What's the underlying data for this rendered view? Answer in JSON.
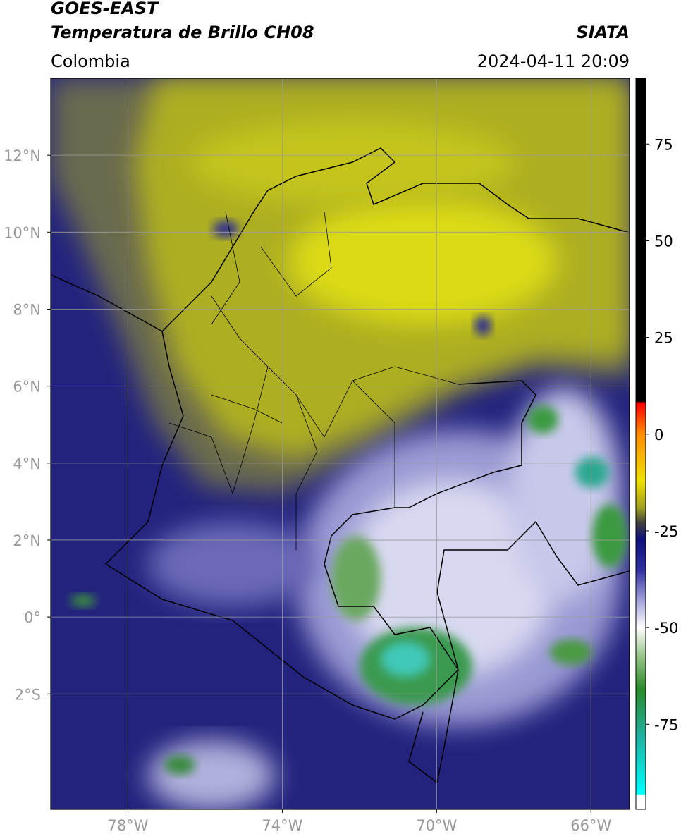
{
  "header": {
    "title_line1": "GOES-EAST",
    "title_line2": "Temperatura de Brillo CH08",
    "region": "Colombia",
    "agency": "SIATA",
    "datetime": "2024-04-11 20:09"
  },
  "map": {
    "lonlim": [
      -80,
      -65
    ],
    "latlim": [
      -5,
      14
    ],
    "grid": true,
    "grid_color": "#9a9a9a",
    "lon_ticks": [
      {
        "value": -78,
        "label": "78°W"
      },
      {
        "value": -74,
        "label": "74°W"
      },
      {
        "value": -70,
        "label": "70°W"
      },
      {
        "value": -66,
        "label": "66°W"
      }
    ],
    "lat_ticks": [
      {
        "value": 12,
        "label": "12°N"
      },
      {
        "value": 10,
        "label": "10°N"
      },
      {
        "value": 8,
        "label": "8°N"
      },
      {
        "value": 6,
        "label": "6°N"
      },
      {
        "value": 4,
        "label": "4°N"
      },
      {
        "value": 2,
        "label": "2°N"
      },
      {
        "value": 0,
        "label": "0°"
      },
      {
        "value": -2,
        "label": "2°S"
      }
    ]
  },
  "colorbar": {
    "lim": [
      -97,
      92
    ],
    "ticks": [
      75,
      50,
      25,
      0,
      -25,
      -50,
      -75
    ],
    "stops": [
      {
        "value": 92,
        "color": "#000000"
      },
      {
        "value": 8.5,
        "color": "#000000"
      },
      {
        "value": 8,
        "color": "#ff0000"
      },
      {
        "value": 0,
        "color": "#ff8c00"
      },
      {
        "value": -12,
        "color": "#f0e000"
      },
      {
        "value": -19,
        "color": "#a0a020"
      },
      {
        "value": -23,
        "color": "#404040"
      },
      {
        "value": -27,
        "color": "#10107a"
      },
      {
        "value": -35,
        "color": "#3030a0"
      },
      {
        "value": -44,
        "color": "#b0b0e0"
      },
      {
        "value": -50,
        "color": "#ffffff"
      },
      {
        "value": -58,
        "color": "#90c080"
      },
      {
        "value": -66,
        "color": "#2a8a2a"
      },
      {
        "value": -78,
        "color": "#20b0a0"
      },
      {
        "value": -93,
        "color": "#00ffff"
      },
      {
        "value": -93.5,
        "color": "#ffffff"
      },
      {
        "value": -97,
        "color": "#ffffff"
      }
    ]
  }
}
